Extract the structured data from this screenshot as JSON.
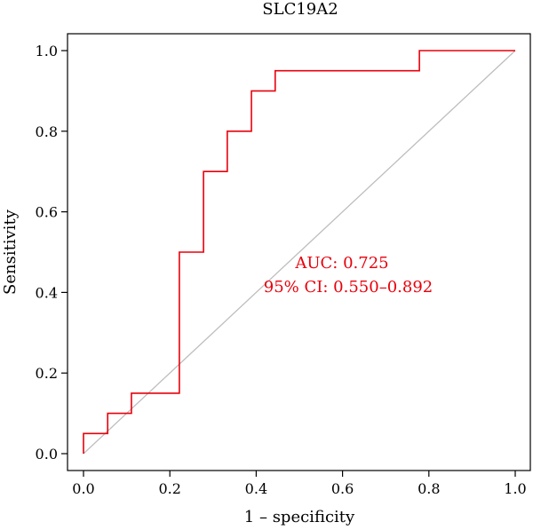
{
  "chart_data": {
    "type": "line",
    "title": "SLC19A2",
    "xlabel": "1 – specificity",
    "ylabel": "Sensitivity",
    "xlim": [
      0.0,
      1.0
    ],
    "ylim": [
      0.0,
      1.0
    ],
    "x_ticks": [
      0.0,
      0.2,
      0.4,
      0.6,
      0.8,
      1.0
    ],
    "y_ticks": [
      0.0,
      0.2,
      0.4,
      0.6,
      0.8,
      1.0
    ],
    "x_tick_labels": [
      "0.0",
      "0.2",
      "0.4",
      "0.6",
      "0.8",
      "1.0"
    ],
    "y_tick_labels": [
      "0.0",
      "0.2",
      "0.4",
      "0.6",
      "0.8",
      "1.0"
    ],
    "grid": false,
    "series": [
      {
        "color": "#e8000b",
        "step": true,
        "x": [
          0.0,
          0.0,
          0.056,
          0.056,
          0.111,
          0.111,
          0.222,
          0.222,
          0.278,
          0.278,
          0.333,
          0.333,
          0.389,
          0.389,
          0.444,
          0.444,
          0.778,
          0.778,
          1.0
        ],
        "y": [
          0.0,
          0.05,
          0.05,
          0.1,
          0.1,
          0.15,
          0.15,
          0.5,
          0.5,
          0.7,
          0.7,
          0.8,
          0.8,
          0.9,
          0.9,
          0.95,
          0.95,
          1.0,
          1.0
        ]
      },
      {
        "color": "#bdbdbd",
        "x": [
          0.0,
          1.0
        ],
        "y": [
          0.0,
          1.0
        ]
      }
    ],
    "annotations": {
      "auc": "AUC: 0.725",
      "ci": "95% CI: 0.550–0.892"
    }
  }
}
